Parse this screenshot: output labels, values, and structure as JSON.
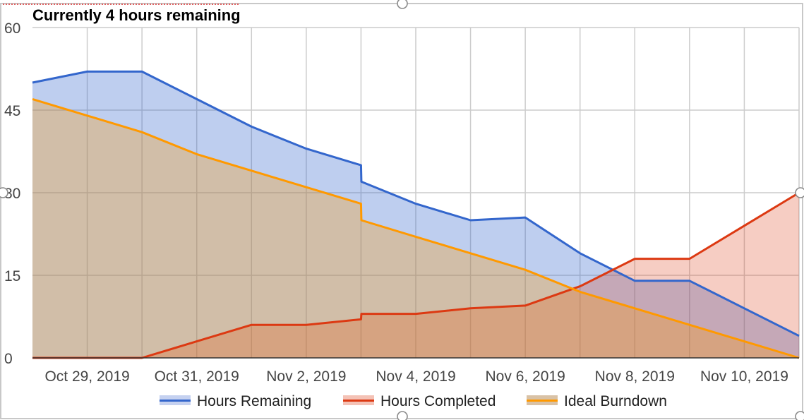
{
  "chart_data": {
    "type": "area",
    "title": "Currently 4 hours remaining",
    "xlabel": "",
    "ylabel": "",
    "ylim": [
      0,
      60
    ],
    "yticks": [
      "0",
      "15",
      "30",
      "45",
      "60"
    ],
    "xlim": [
      "2019-10-28",
      "2019-11-11"
    ],
    "xtick_labels": [
      "Oct 29, 2019",
      "Oct 31, 2019",
      "Nov 2, 2019",
      "Nov 4, 2019",
      "Nov 6, 2019",
      "Nov 8, 2019",
      "Nov 10, 2019"
    ],
    "grid": true,
    "legend_position": "bottom",
    "series": [
      {
        "name": "Hours Remaining",
        "color": "#3366cc",
        "fill": "#c5d1f0",
        "points": [
          [
            "2019-10-28",
            50
          ],
          [
            "2019-10-29",
            52
          ],
          [
            "2019-10-30",
            52
          ],
          [
            "2019-10-31",
            47
          ],
          [
            "2019-11-01",
            42
          ],
          [
            "2019-11-02",
            38
          ],
          [
            "2019-11-03",
            35
          ],
          [
            "2019-11-03",
            32
          ],
          [
            "2019-11-04",
            28
          ],
          [
            "2019-11-05",
            25
          ],
          [
            "2019-11-06",
            25.5
          ],
          [
            "2019-11-07",
            19
          ],
          [
            "2019-11-08",
            14
          ],
          [
            "2019-11-09",
            14
          ],
          [
            "2019-11-10",
            9
          ],
          [
            "2019-11-11",
            4
          ]
        ]
      },
      {
        "name": "Hours Completed",
        "color": "#dc3912",
        "fill": "#f4c2b6",
        "points": [
          [
            "2019-10-28",
            0
          ],
          [
            "2019-10-29",
            0
          ],
          [
            "2019-10-30",
            0
          ],
          [
            "2019-10-31",
            3
          ],
          [
            "2019-11-01",
            6
          ],
          [
            "2019-11-02",
            6
          ],
          [
            "2019-11-03",
            7
          ],
          [
            "2019-11-03",
            8
          ],
          [
            "2019-11-04",
            8
          ],
          [
            "2019-11-05",
            9
          ],
          [
            "2019-11-06",
            9.5
          ],
          [
            "2019-11-07",
            13
          ],
          [
            "2019-11-08",
            18
          ],
          [
            "2019-11-09",
            18
          ],
          [
            "2019-11-10",
            24
          ],
          [
            "2019-11-11",
            30
          ]
        ]
      },
      {
        "name": "Ideal Burndown",
        "color": "#ff9900",
        "fill": "#d9c2a6",
        "points": [
          [
            "2019-10-28",
            47
          ],
          [
            "2019-10-29",
            44
          ],
          [
            "2019-10-30",
            41
          ],
          [
            "2019-10-31",
            37
          ],
          [
            "2019-11-01",
            34
          ],
          [
            "2019-11-02",
            31
          ],
          [
            "2019-11-03",
            28
          ],
          [
            "2019-11-03",
            25
          ],
          [
            "2019-11-04",
            22
          ],
          [
            "2019-11-05",
            19
          ],
          [
            "2019-11-06",
            16
          ],
          [
            "2019-11-07",
            12
          ],
          [
            "2019-11-08",
            9
          ],
          [
            "2019-11-09",
            6
          ],
          [
            "2019-11-10",
            3
          ],
          [
            "2019-11-11",
            0
          ]
        ]
      }
    ]
  }
}
